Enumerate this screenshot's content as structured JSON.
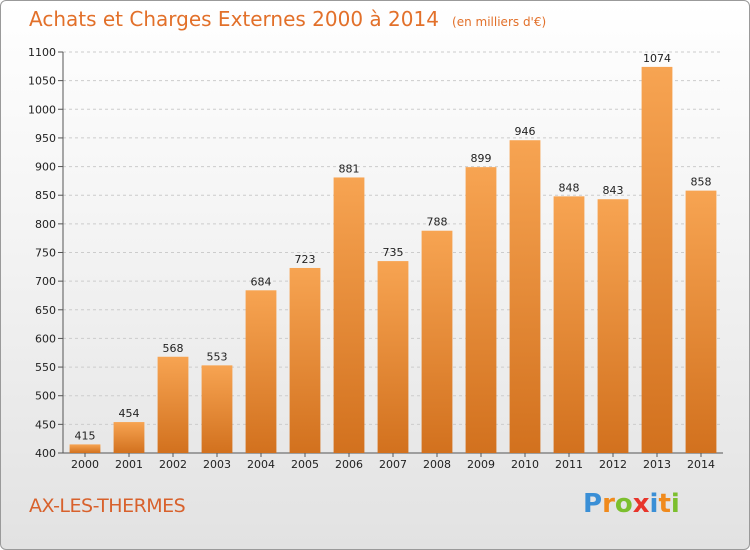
{
  "header": {
    "title": "Achats et Charges Externes 2000 à 2014",
    "subtitle": "(en milliers d'€)"
  },
  "footer": {
    "place": "AX-LES-THERMES",
    "logo_letters": [
      "P",
      "r",
      "o",
      "x",
      "i",
      "t",
      "i"
    ],
    "logo_colors": [
      "#3a8fd6",
      "#f08a1c",
      "#7cbf2e",
      "#e8352b",
      "#3a8fd6",
      "#f08a1c",
      "#7cbf2e"
    ]
  },
  "colors": {
    "bar_top": "#f7a452",
    "bar_bottom": "#d2711e",
    "grid": "#cccccc",
    "accent": "#e2702a"
  },
  "chart_data": {
    "type": "bar",
    "title": "Achats et Charges Externes 2000 à 2014",
    "subtitle": "(en milliers d'€)",
    "xlabel": "",
    "ylabel": "",
    "categories": [
      "2000",
      "2001",
      "2002",
      "2003",
      "2004",
      "2005",
      "2006",
      "2007",
      "2008",
      "2009",
      "2010",
      "2011",
      "2012",
      "2013",
      "2014"
    ],
    "values": [
      415,
      454,
      568,
      553,
      684,
      723,
      881,
      735,
      788,
      899,
      946,
      848,
      843,
      1074,
      858
    ],
    "ylim": [
      400,
      1100
    ],
    "yticks": [
      400,
      450,
      500,
      550,
      600,
      650,
      700,
      750,
      800,
      850,
      900,
      950,
      1000,
      1050,
      1100
    ],
    "grid": "horizontal dashed",
    "legend": "none"
  }
}
